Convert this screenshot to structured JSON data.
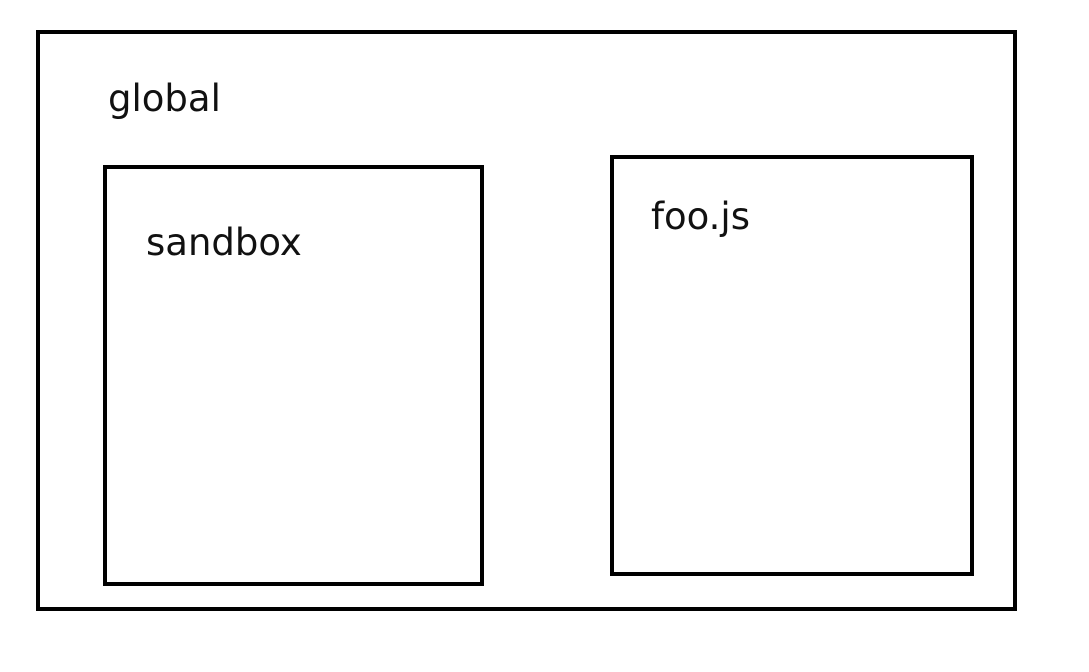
{
  "diagram": {
    "outer_label": "global",
    "boxes": [
      {
        "label": "sandbox"
      },
      {
        "label": "foo.js"
      }
    ]
  }
}
